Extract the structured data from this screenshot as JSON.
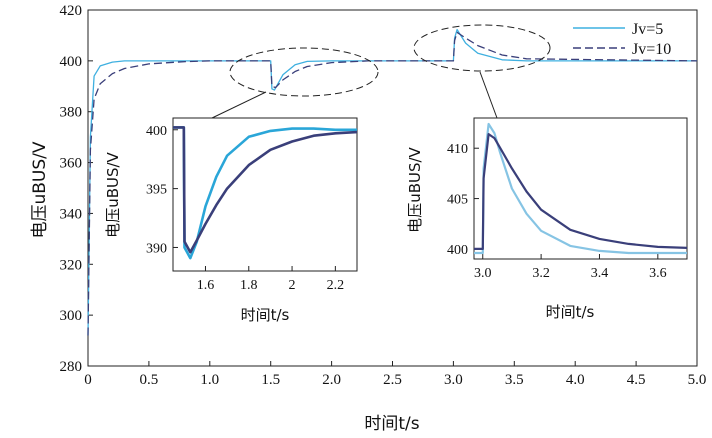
{
  "chart_data": [
    {
      "type": "line",
      "id": "main",
      "xlabel": "时间t/s",
      "ylabel": "电压uBUS/V",
      "xlim": [
        0,
        5
      ],
      "ylim": [
        280,
        420
      ],
      "xticks": [
        "0",
        "0.5",
        "1.0",
        "1.5",
        "2.0",
        "2.5",
        "3.0",
        "3.5",
        "4.0",
        "4.5",
        "5.0"
      ],
      "yticks": [
        "280",
        "300",
        "320",
        "340",
        "360",
        "380",
        "400",
        "420"
      ],
      "legend": {
        "position": "top-right",
        "entries": [
          "Jv=5",
          "Jv=10"
        ]
      },
      "series": [
        {
          "name": "Jv=5",
          "color": "#3fb0e0",
          "dash": false,
          "x": [
            0,
            0.02,
            0.05,
            0.1,
            0.2,
            0.3,
            0.5,
            1.0,
            1.5,
            1.51,
            1.53,
            1.6,
            1.7,
            1.8,
            2.0,
            2.3,
            3.0,
            3.01,
            3.03,
            3.1,
            3.2,
            3.4,
            3.6,
            5.0
          ],
          "y": [
            292,
            370,
            394,
            398,
            399.5,
            400,
            400,
            400,
            400,
            389,
            388.5,
            394.5,
            398.5,
            399.8,
            400,
            400,
            400,
            409,
            412.3,
            407,
            403,
            400.4,
            400,
            400
          ]
        },
        {
          "name": "Jv=10",
          "color": "#3a3f7a",
          "dash": true,
          "x": [
            0,
            0.02,
            0.05,
            0.1,
            0.2,
            0.3,
            0.5,
            0.8,
            1.0,
            1.5,
            1.51,
            1.54,
            1.6,
            1.7,
            1.8,
            2.0,
            2.3,
            3.0,
            3.01,
            3.03,
            3.1,
            3.2,
            3.4,
            3.6,
            5.0
          ],
          "y": [
            292,
            365,
            385,
            391,
            395,
            397,
            398.8,
            399.7,
            400,
            400,
            390,
            389.5,
            392.5,
            395.8,
            397.8,
            399.3,
            400,
            400,
            408,
            411.2,
            409,
            406,
            402.3,
            400.8,
            400
          ]
        }
      ]
    },
    {
      "type": "line",
      "id": "inset-1",
      "xlabel": "时间t/s",
      "ylabel": "电压uBUS/V",
      "xlim": [
        1.45,
        2.3
      ],
      "ylim": [
        388,
        401
      ],
      "xticks": [
        "1.6",
        "1.8",
        "2",
        "2.2"
      ],
      "yticks": [
        "390",
        "395",
        "400"
      ],
      "series": [
        {
          "name": "Jv=5",
          "color": "#2aa6d8",
          "x": [
            1.45,
            1.5,
            1.503,
            1.53,
            1.56,
            1.6,
            1.65,
            1.7,
            1.8,
            1.9,
            2.0,
            2.1,
            2.2,
            2.3
          ],
          "y": [
            400.2,
            400.2,
            390,
            389.1,
            390.5,
            393.5,
            396,
            397.8,
            399.4,
            399.9,
            400.1,
            400.1,
            400,
            400
          ]
        },
        {
          "name": "Jv=10",
          "color": "#3a3f7a",
          "x": [
            1.45,
            1.5,
            1.503,
            1.53,
            1.56,
            1.6,
            1.65,
            1.7,
            1.8,
            1.9,
            2.0,
            2.1,
            2.2,
            2.3
          ],
          "y": [
            400.2,
            400.2,
            390.5,
            389.6,
            390.6,
            392,
            393.6,
            395,
            397,
            398.3,
            399,
            399.5,
            399.7,
            399.8
          ]
        }
      ]
    },
    {
      "type": "line",
      "id": "inset-2",
      "xlabel": "时间t/s",
      "ylabel": "电压uBUS/V",
      "xlim": [
        2.97,
        3.7
      ],
      "ylim": [
        399,
        413
      ],
      "xticks": [
        "3.0",
        "3.2",
        "3.4",
        "3.6"
      ],
      "yticks": [
        "400",
        "405",
        "410"
      ],
      "series": [
        {
          "name": "Jv=5",
          "color": "#86c4e4",
          "x": [
            2.97,
            3.0,
            3.003,
            3.02,
            3.04,
            3.06,
            3.1,
            3.15,
            3.2,
            3.3,
            3.4,
            3.5,
            3.6,
            3.7
          ],
          "y": [
            399.6,
            399.6,
            408,
            412.4,
            411.5,
            409.5,
            406,
            403.5,
            401.8,
            400.3,
            399.8,
            399.6,
            399.6,
            399.6
          ]
        },
        {
          "name": "Jv=10",
          "color": "#3a3f7a",
          "x": [
            2.97,
            3.0,
            3.003,
            3.02,
            3.04,
            3.06,
            3.1,
            3.15,
            3.2,
            3.3,
            3.4,
            3.5,
            3.6,
            3.7
          ],
          "y": [
            400,
            400,
            407,
            411.4,
            411,
            410,
            408,
            405.7,
            403.9,
            401.9,
            401,
            400.5,
            400.2,
            400.1
          ]
        }
      ]
    }
  ]
}
